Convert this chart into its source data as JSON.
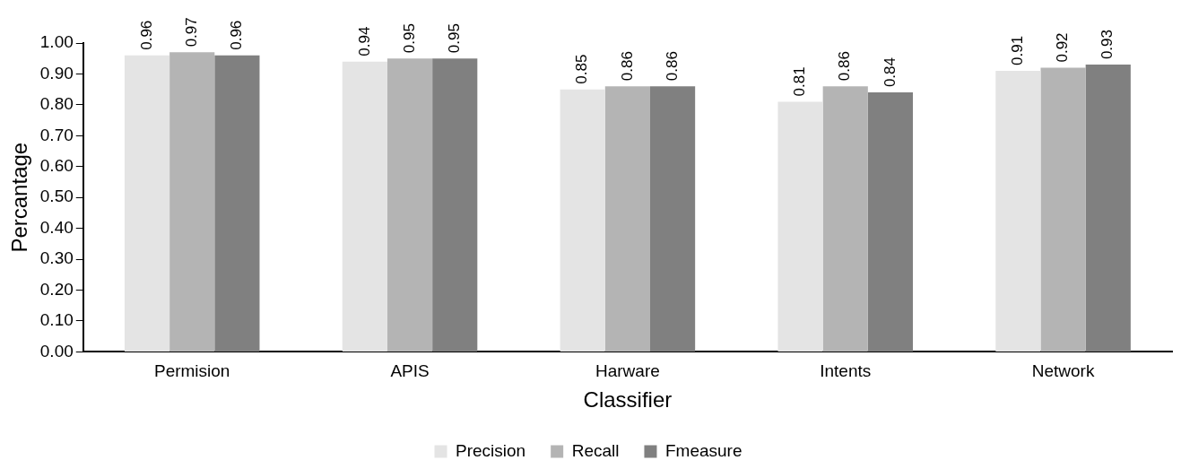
{
  "chart_data": {
    "type": "bar",
    "xlabel": "Classifier",
    "ylabel": "Percantage",
    "categories": [
      "Permision",
      "APIS",
      "Harware",
      "Intents",
      "Network"
    ],
    "series": [
      {
        "name": "Precision",
        "color": "#e4e4e4",
        "values": [
          0.96,
          0.94,
          0.85,
          0.81,
          0.91
        ]
      },
      {
        "name": "Recall",
        "color": "#b4b4b4",
        "values": [
          0.97,
          0.95,
          0.86,
          0.86,
          0.92
        ]
      },
      {
        "name": "Fmeasure",
        "color": "#808080",
        "values": [
          0.96,
          0.95,
          0.86,
          0.84,
          0.93
        ]
      }
    ],
    "ylim": [
      0,
      1
    ],
    "yticks": [
      {
        "value": 0,
        "label": "0.00"
      },
      {
        "value": 0.1,
        "label": "0.10"
      },
      {
        "value": 0.2,
        "label": "0.20"
      },
      {
        "value": 0.3,
        "label": "0.30"
      },
      {
        "value": 0.4,
        "label": "0.40"
      },
      {
        "value": 0.5,
        "label": "0.50"
      },
      {
        "value": 0.6,
        "label": "0.60"
      },
      {
        "value": 0.7,
        "label": "0.70"
      },
      {
        "value": 0.8,
        "label": "0.80"
      },
      {
        "value": 0.9,
        "label": "0.90"
      },
      {
        "value": 1,
        "label": "1.00"
      }
    ],
    "data_labels": true,
    "grid": false,
    "legend": "bottom"
  }
}
